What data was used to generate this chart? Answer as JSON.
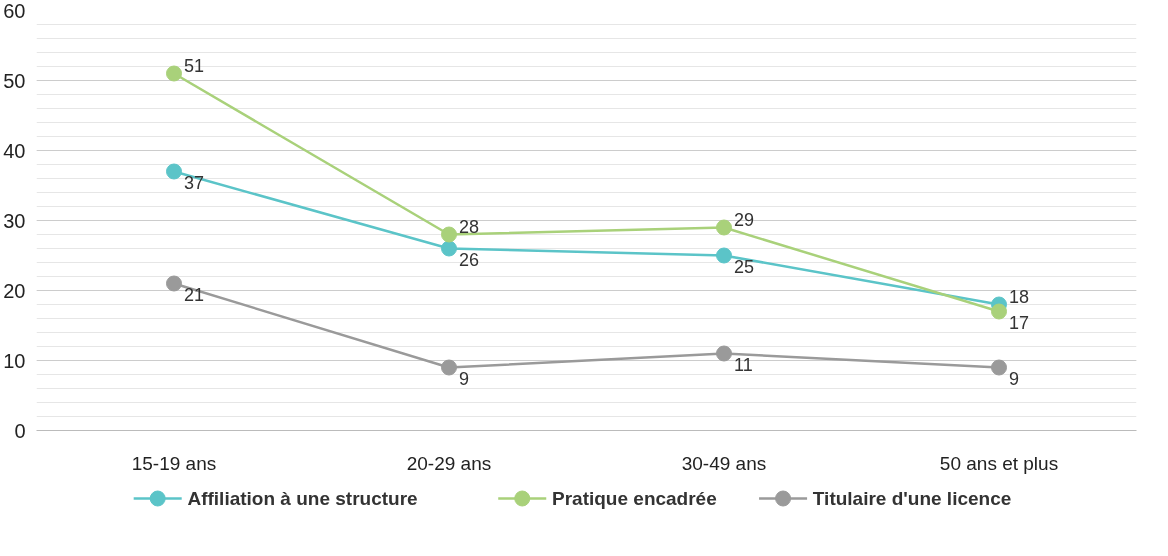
{
  "chart_data": {
    "type": "line",
    "categories": [
      "15-19 ans",
      "20-29 ans",
      "30-49 ans",
      "50 ans et plus"
    ],
    "series": [
      {
        "name": "Affiliation à une structure",
        "color": "#5bc4c8",
        "values": [
          37,
          26,
          25,
          18
        ]
      },
      {
        "name": "Pratique encadrée",
        "color": "#a9d17a",
        "values": [
          51,
          28,
          29,
          17
        ]
      },
      {
        "name": "Titulaire d'une licence",
        "color": "#9a9a9a",
        "values": [
          21,
          9,
          11,
          9
        ]
      }
    ],
    "ylim": [
      0,
      60
    ],
    "yticks": [
      0,
      10,
      20,
      30,
      40,
      50,
      60
    ],
    "grid": "y",
    "legend": "bottom",
    "marker": "circle",
    "line_style": "solid",
    "data_labels": true
  }
}
